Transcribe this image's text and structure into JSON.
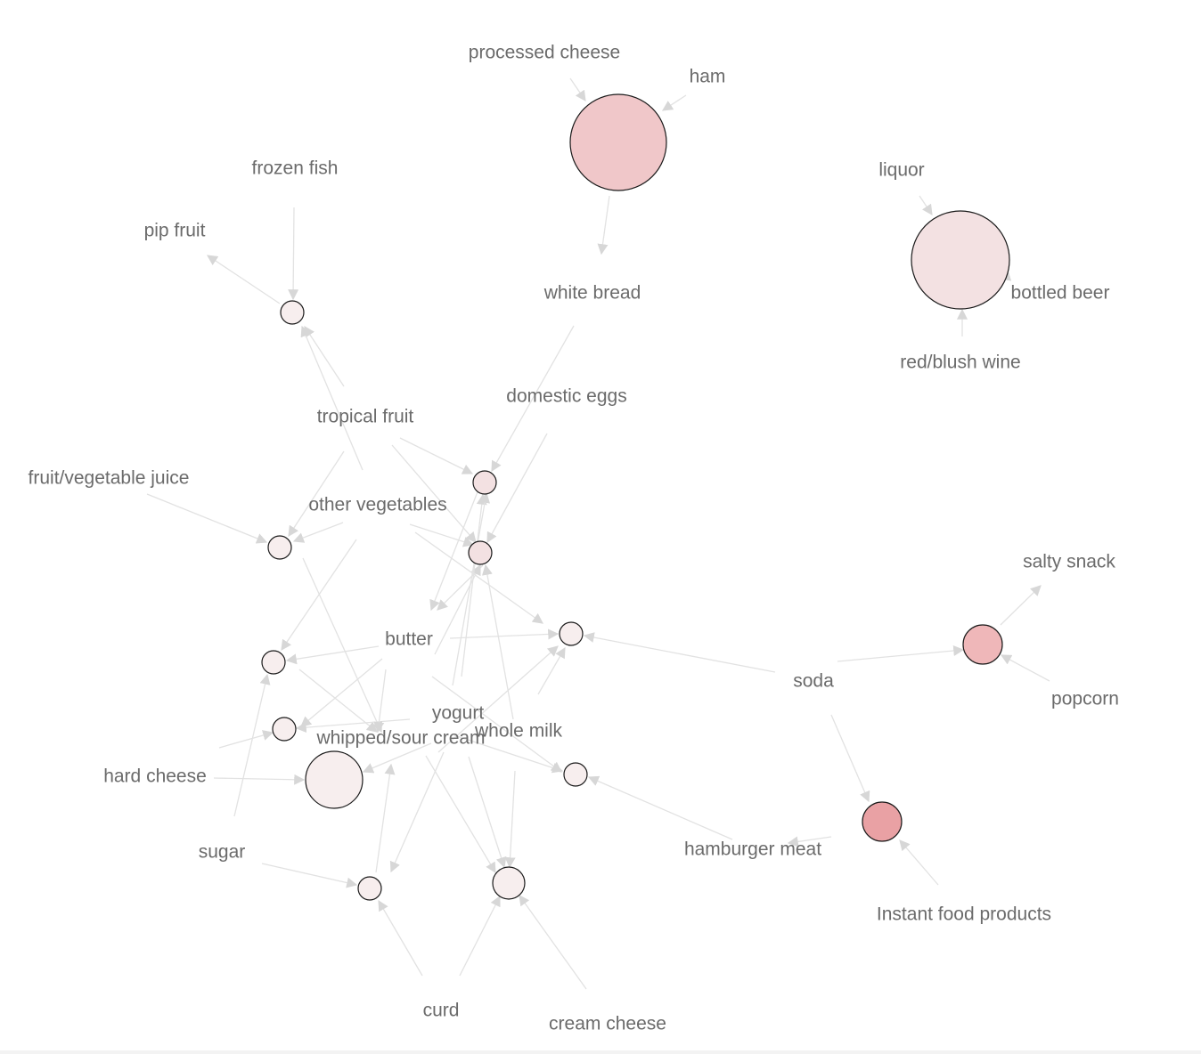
{
  "graph": {
    "item_labels": [
      "processed cheese",
      "ham",
      "white bread",
      "liquor",
      "bottled beer",
      "red/blush wine",
      "frozen fish",
      "pip fruit",
      "tropical fruit",
      "domestic eggs",
      "fruit/vegetable juice",
      "other vegetables",
      "butter",
      "yogurt",
      "whipped/sour cream",
      "whole milk",
      "hard cheese",
      "sugar",
      "curd",
      "cream cheese",
      "soda",
      "salty snack",
      "popcorn",
      "hamburger meat",
      "Instant food products"
    ],
    "colors": {
      "edge": "#e2e2e2",
      "arrow": "#d7d7d7",
      "label": "#6b6b6b",
      "node_stroke": "#1a1a1a",
      "lift_scale": [
        "#f7eeee",
        "#f3e1e2",
        "#f0c7c9",
        "#efb7b9",
        "#e9a1a4"
      ]
    }
  }
}
